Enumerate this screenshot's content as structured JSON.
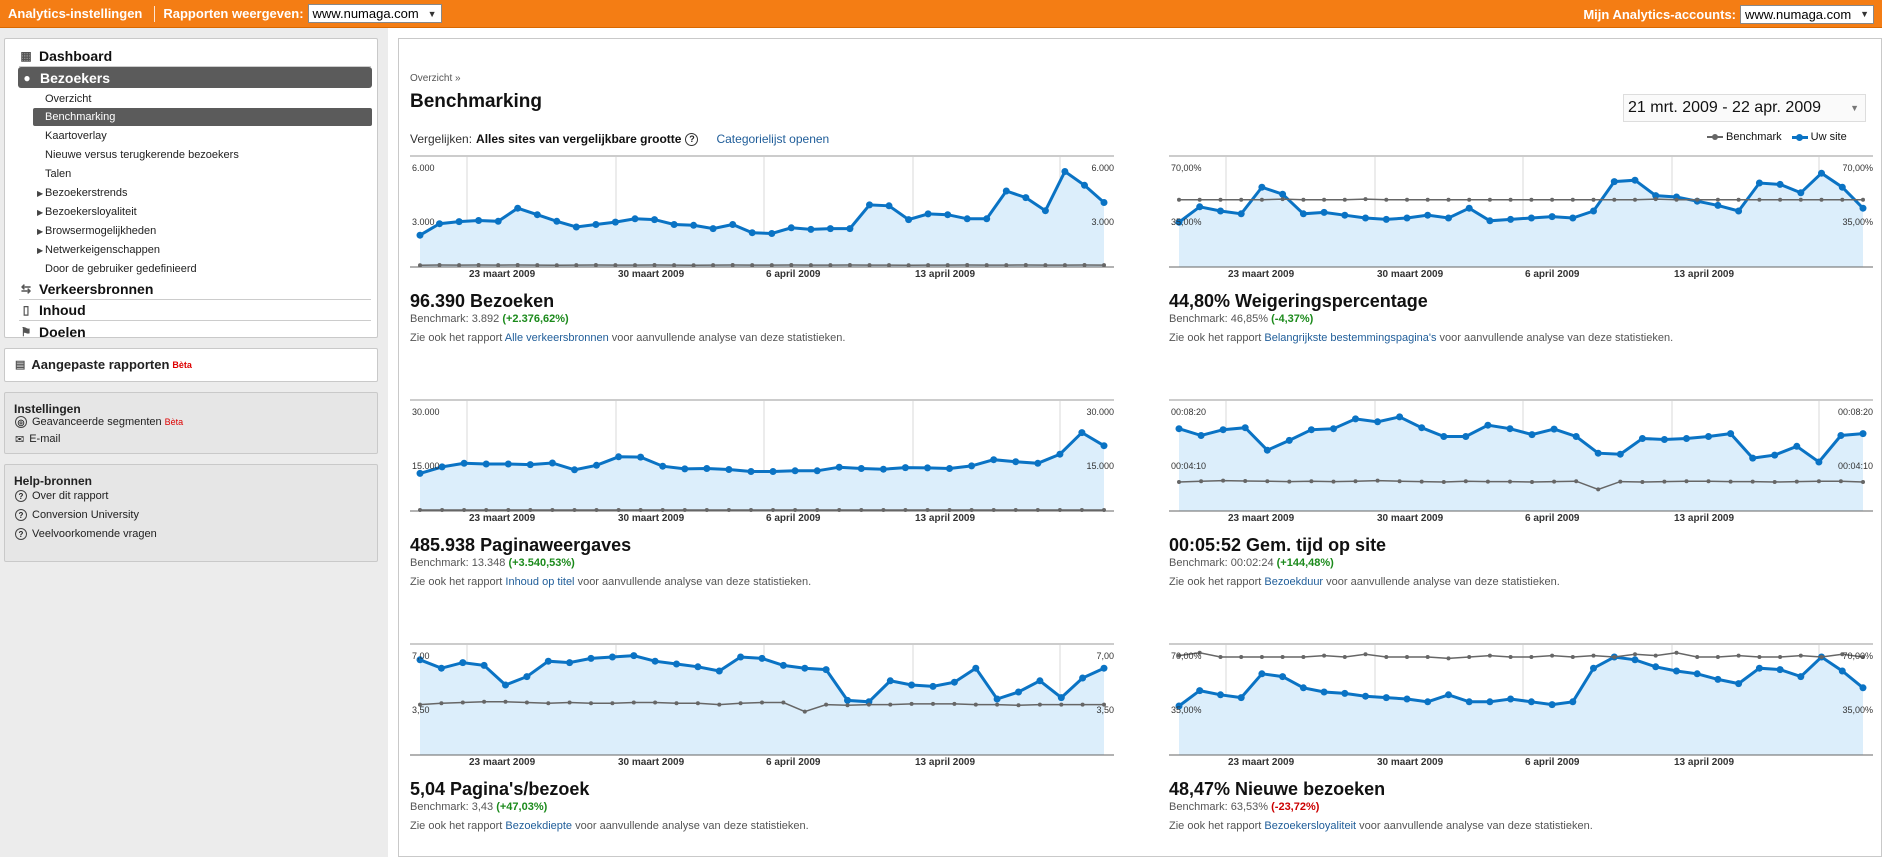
{
  "topbar": {
    "settings_link": "Analytics-instellingen",
    "reports_label": "Rapporten weergeven:",
    "reports_site": "www.numaga.com",
    "accounts_label": "Mijn Analytics-accounts:",
    "accounts_site": "www.numaga.com"
  },
  "sidebar": {
    "dashboard": "Dashboard",
    "visitors": "Bezoekers",
    "visitor_items": [
      "Overzicht",
      "Benchmarking",
      "Kaartoverlay",
      "Nieuwe versus terugkerende bezoekers",
      "Talen",
      "Bezoekerstrends",
      "Bezoekersloyaliteit",
      "Browsermogelijkheden",
      "Netwerkeigenschappen",
      "Door de gebruiker gedefinieerd"
    ],
    "traffic": "Verkeersbronnen",
    "content": "Inhoud",
    "goals": "Doelen",
    "custom_reports": "Aangepaste rapporten",
    "beta": "Bèta",
    "settings_title": "Instellingen",
    "adv_segments": "Geavanceerde segmenten",
    "email": "E-mail",
    "help_title": "Help-bronnen",
    "help_items": [
      "Over dit rapport",
      "Conversion University",
      "Veelvoorkomende vragen"
    ]
  },
  "main": {
    "breadcrumb": "Overzicht »",
    "title": "Benchmarking",
    "date_range": "21 mrt. 2009 - 22 apr. 2009",
    "compare_label": "Vergelijken:",
    "compare_value": "Alles sites van vergelijkbare grootte",
    "help_icon": "?",
    "category_link": "Categorielijst openen",
    "legend_benchmark": "Benchmark",
    "legend_site": "Uw site",
    "note_prefix": "Zie ook het rapport",
    "note_suffix": "voor aanvullende analyse van deze statistieken.",
    "colors": {
      "site": "#0a73c4",
      "benchmark": "#666666",
      "fill": "#dceefb",
      "accent": "#f47d14"
    }
  },
  "chart_data": [
    {
      "type": "line",
      "title": "96.390 Bezoeken",
      "x_ticks": [
        "23 maart 2009",
        "30 maart 2009",
        "6 april 2009",
        "13 april 2009"
      ],
      "y_labels_left": [
        "6.000",
        "3.000"
      ],
      "y_labels_right": [
        "6.000",
        "3.000"
      ],
      "ylim": [
        0,
        6000
      ],
      "series": [
        {
          "name": "Uw site",
          "values": [
            1950,
            2650,
            2780,
            2850,
            2800,
            3600,
            3200,
            2800,
            2450,
            2600,
            2750,
            2950,
            2900,
            2600,
            2550,
            2350,
            2600,
            2100,
            2050,
            2400,
            2300,
            2350,
            2350,
            3800,
            3750,
            2900,
            3250,
            3200,
            2950,
            2950,
            4650,
            4250,
            3450,
            5850,
            5000,
            3950
          ]
        },
        {
          "name": "Benchmark",
          "values": [
            110,
            120,
            115,
            125,
            118,
            120,
            115,
            112,
            118,
            120,
            115,
            118,
            120,
            115,
            112,
            118,
            120,
            115,
            118,
            120,
            115,
            118,
            120,
            115,
            118,
            112,
            115,
            118,
            120,
            115,
            118,
            120,
            115,
            118,
            120,
            118
          ]
        }
      ],
      "big_value": "96.390 Bezoeken",
      "benchmark_label": "Benchmark: 3.892",
      "change": "(+2.376,62%)",
      "change_sign": "pos",
      "report_link": "Alle verkeersbronnen"
    },
    {
      "type": "line",
      "title": "44,80% Weigeringspercentage",
      "x_ticks": [
        "23 maart 2009",
        "30 maart 2009",
        "6 april 2009",
        "13 april 2009"
      ],
      "y_labels_left": [
        "70,00%",
        "35,00%"
      ],
      "y_labels_right": [
        "70,00%",
        "35,00%"
      ],
      "ylim": [
        0,
        70
      ],
      "series": [
        {
          "name": "Uw site",
          "values": [
            32,
            43,
            40,
            38,
            57,
            52,
            38,
            39,
            37,
            35,
            34,
            35,
            37,
            35,
            42,
            33,
            34,
            35,
            36,
            35,
            40,
            61,
            62,
            51,
            50,
            47,
            44,
            40,
            60,
            59,
            53,
            67,
            57,
            42
          ]
        },
        {
          "name": "Benchmark",
          "values": [
            48,
            48,
            48,
            48,
            48,
            48.5,
            48,
            48,
            48,
            48.5,
            48,
            48,
            48,
            48,
            48,
            48,
            48,
            48,
            48,
            48,
            48,
            48,
            48,
            48.5,
            48,
            48,
            48,
            48,
            48,
            48,
            48,
            48,
            48,
            48
          ]
        }
      ],
      "big_value": "44,80% Weigeringspercentage",
      "benchmark_label": "Benchmark: 46,85%",
      "change": "(-4,37%)",
      "change_sign": "pos",
      "report_link": "Belangrijkste bestemmingspagina's"
    },
    {
      "type": "line",
      "title": "485.938 Paginaweergaves",
      "x_ticks": [
        "23 maart 2009",
        "30 maart 2009",
        "6 april 2009",
        "13 april 2009"
      ],
      "y_labels_left": [
        "30.000",
        "15.000"
      ],
      "y_labels_right": [
        "30.000",
        "15.000"
      ],
      "ylim": [
        0,
        30000
      ],
      "series": [
        {
          "name": "Uw site",
          "values": [
            11500,
            13500,
            14600,
            14400,
            14400,
            14200,
            14700,
            12600,
            14000,
            16600,
            16500,
            13700,
            12900,
            13000,
            12700,
            12100,
            12100,
            12300,
            12300,
            13400,
            13000,
            12800,
            13300,
            13200,
            13000,
            13800,
            15700,
            15100,
            14600,
            17400,
            24000,
            20000
          ]
        },
        {
          "name": "Benchmark",
          "values": [
            300,
            320,
            310,
            305,
            315,
            320,
            300,
            310,
            305,
            315,
            320,
            300,
            310,
            305,
            315,
            320,
            300,
            310,
            305,
            315,
            320,
            300,
            310,
            305,
            315,
            320,
            300,
            310,
            305,
            315,
            320,
            310
          ]
        }
      ],
      "big_value": "485.938 Paginaweergaves",
      "benchmark_label": "Benchmark: 13.348",
      "change": "(+3.540,53%)",
      "change_sign": "pos",
      "report_link": "Inhoud op titel"
    },
    {
      "type": "line",
      "title": "00:05:52 Gem. tijd op site",
      "x_ticks": [
        "23 maart 2009",
        "30 maart 2009",
        "6 april 2009",
        "13 april 2009"
      ],
      "y_labels_left": [
        "00:08:20",
        "00:04:10"
      ],
      "y_labels_right": [
        "00:08:20",
        "00:04:10"
      ],
      "ylim": [
        0,
        500
      ],
      "series": [
        {
          "name": "Uw site",
          "values": [
            420,
            385,
            415,
            425,
            310,
            360,
            415,
            420,
            470,
            455,
            480,
            425,
            380,
            380,
            438,
            420,
            390,
            418,
            380,
            295,
            290,
            370,
            365,
            370,
            380,
            395,
            270,
            285,
            330,
            250,
            385,
            395
          ]
        },
        {
          "name": "Benchmark",
          "values": [
            148,
            152,
            155,
            153,
            152,
            150,
            152,
            150,
            152,
            155,
            152,
            150,
            148,
            152,
            150,
            150,
            148,
            150,
            152,
            110,
            150,
            148,
            150,
            152,
            152,
            150,
            150,
            148,
            150,
            152,
            152,
            148
          ]
        }
      ],
      "big_value": "00:05:52 Gem. tijd op site",
      "benchmark_label": "Benchmark: 00:02:24",
      "change": "(+144,48%)",
      "change_sign": "pos",
      "report_link": "Bezoekduur"
    },
    {
      "type": "line",
      "title": "5,04 Pagina's/bezoek",
      "x_ticks": [
        "23 maart 2009",
        "30 maart 2009",
        "6 april 2009",
        "13 april 2009"
      ],
      "y_labels_left": [
        "7,00",
        "3,50"
      ],
      "y_labels_right": [
        "7,00",
        "3,50"
      ],
      "ylim": [
        0,
        7
      ],
      "series": [
        {
          "name": "Uw site",
          "values": [
            6.8,
            6.2,
            6.6,
            6.4,
            5.0,
            5.6,
            6.7,
            6.6,
            6.9,
            7.0,
            7.1,
            6.7,
            6.5,
            6.3,
            6.0,
            7.0,
            6.9,
            6.4,
            6.2,
            6.1,
            3.9,
            3.8,
            5.3,
            5.0,
            4.9,
            5.2,
            6.2,
            4.0,
            4.5,
            5.3,
            4.1,
            5.5,
            6.2
          ]
        },
        {
          "name": "Benchmark",
          "values": [
            3.6,
            3.7,
            3.75,
            3.8,
            3.8,
            3.75,
            3.7,
            3.75,
            3.7,
            3.7,
            3.75,
            3.75,
            3.7,
            3.7,
            3.6,
            3.7,
            3.75,
            3.75,
            3.1,
            3.6,
            3.55,
            3.6,
            3.6,
            3.65,
            3.65,
            3.65,
            3.6,
            3.6,
            3.55,
            3.6,
            3.6,
            3.6,
            3.6
          ]
        }
      ],
      "big_value": "5,04 Pagina's/bezoek",
      "benchmark_label": "Benchmark: 3,43",
      "change": "(+47,03%)",
      "change_sign": "pos",
      "report_link": "Bezoekdiepte"
    },
    {
      "type": "line",
      "title": "48,47% Nieuwe bezoeken",
      "x_ticks": [
        "23 maart 2009",
        "30 maart 2009",
        "6 april 2009",
        "13 april 2009"
      ],
      "y_labels_left": [
        "70,00%",
        "35,00%"
      ],
      "y_labels_right": [
        "70,00%",
        "35,00%"
      ],
      "ylim": [
        0,
        70
      ],
      "series": [
        {
          "name": "Uw site",
          "values": [
            35,
            46,
            43,
            41,
            58,
            56,
            48,
            45,
            44,
            42,
            41,
            40,
            38,
            43,
            38,
            38,
            40,
            38,
            36,
            38,
            62,
            70,
            68,
            63,
            60,
            58,
            54,
            51,
            62,
            61,
            56,
            70,
            60,
            48
          ]
        },
        {
          "name": "Benchmark",
          "values": [
            71,
            73,
            70,
            70,
            70,
            70,
            70,
            71,
            70,
            72,
            70,
            70,
            70,
            69,
            70,
            71,
            70,
            70,
            71,
            70,
            71,
            70,
            72,
            71,
            73,
            70,
            70,
            71,
            70,
            70,
            71,
            70,
            72,
            70
          ]
        }
      ],
      "big_value": "48,47% Nieuwe bezoeken",
      "benchmark_label": "Benchmark: 63,53%",
      "change": "(-23,72%)",
      "change_sign": "neg",
      "report_link": "Bezoekersloyaliteit"
    }
  ]
}
